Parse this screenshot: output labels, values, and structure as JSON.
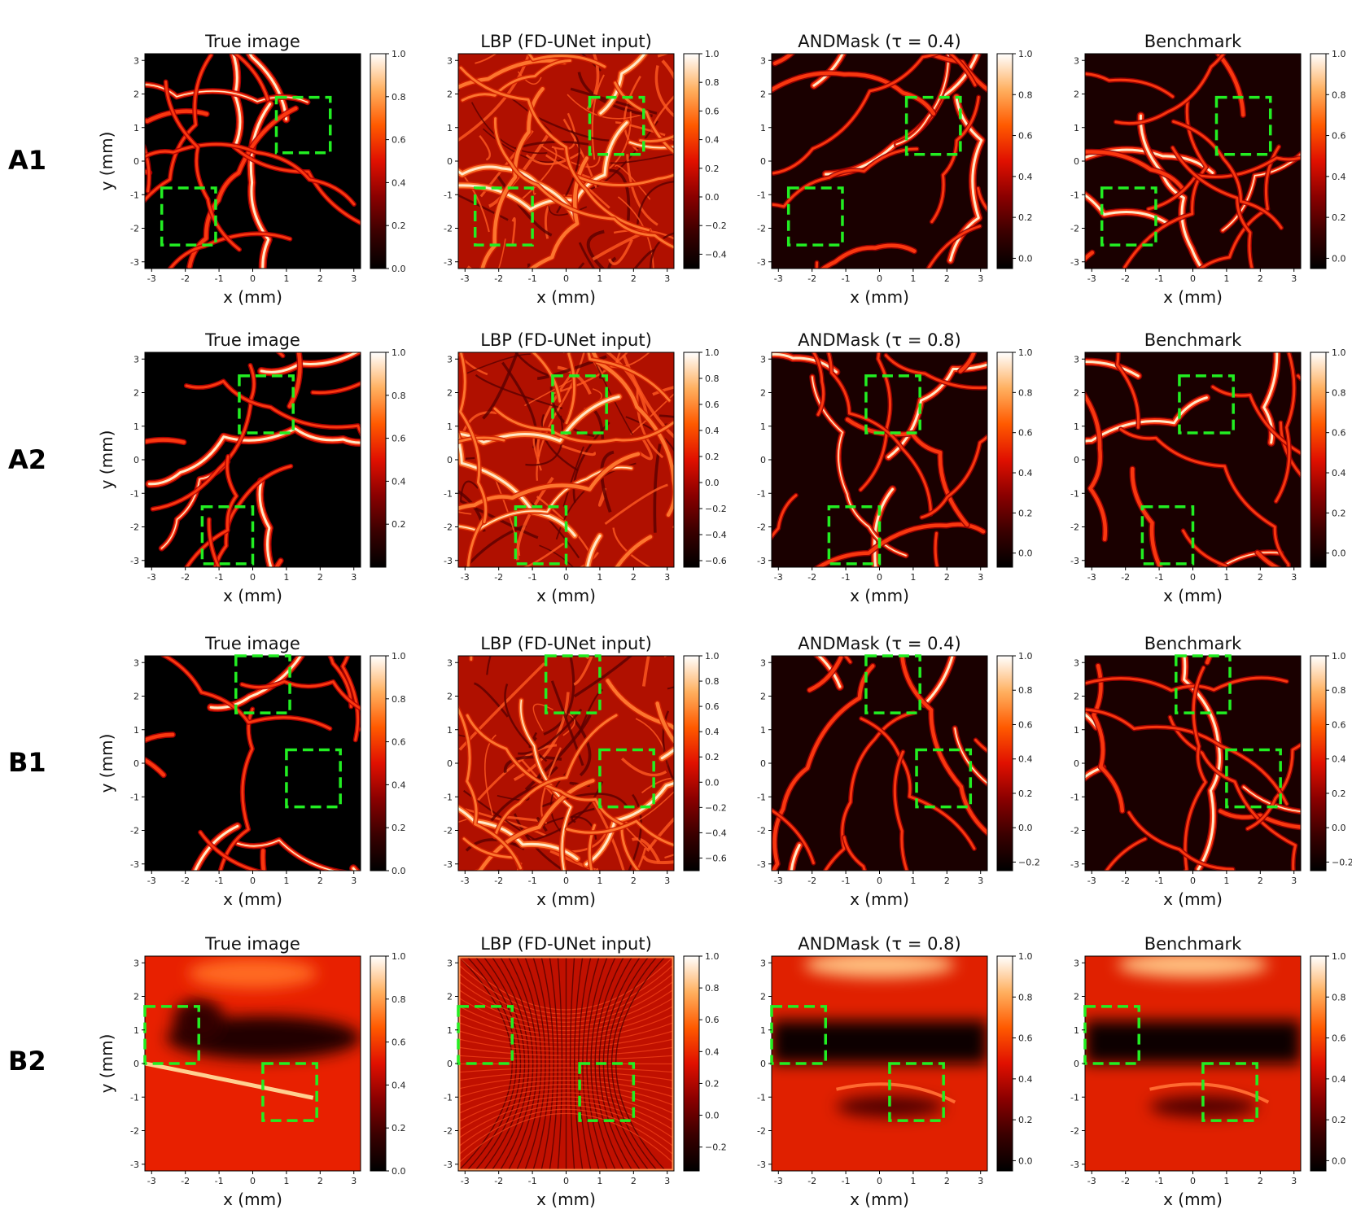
{
  "colormap": {
    "name": "gist_heat",
    "stops": [
      "#000000",
      "#3a0000",
      "#8a0000",
      "#e01000",
      "#ff5a00",
      "#ffb060",
      "#ffffff"
    ]
  },
  "roi_color": "#22ee22",
  "chart_data": [
    {
      "row": "A1",
      "panels": [
        {
          "title": "True image",
          "type": "heatmap",
          "xlabel": "x (mm)",
          "ylabel": "y (mm)",
          "xlim": [
            -3.2,
            3.2
          ],
          "ylim": [
            -3.2,
            3.2
          ],
          "x_ticks": [
            -3,
            -2,
            -1,
            0,
            1,
            2,
            3
          ],
          "y_ticks": [
            3,
            2,
            1,
            0,
            -1,
            -2,
            -3
          ],
          "colorbar": {
            "min": 0.0,
            "max": 1.0,
            "ticks": [
              "1.0",
              "0.8",
              "0.6",
              "0.4",
              "0.2",
              "0.0"
            ]
          },
          "roi": [
            [
              0.7,
              0.25,
              2.3,
              1.9
            ],
            [
              -2.7,
              -2.5,
              -1.1,
              -0.8
            ]
          ],
          "style": "sparse"
        },
        {
          "title": "LBP (FD-UNet input)",
          "type": "heatmap",
          "xlabel": "x (mm)",
          "ylabel": "",
          "xlim": [
            -3.2,
            3.2
          ],
          "ylim": [
            -3.2,
            3.2
          ],
          "x_ticks": [
            -3,
            -2,
            -1,
            0,
            1,
            2,
            3
          ],
          "y_ticks": [
            3,
            2,
            1,
            0,
            -1,
            -2,
            -3
          ],
          "colorbar": {
            "min": -0.5,
            "max": 1.0,
            "ticks": [
              "1.0",
              "0.8",
              "0.6",
              "0.4",
              "0.2",
              "0.0",
              "−0.2",
              "−0.4"
            ]
          },
          "roi": [
            [
              0.7,
              0.2,
              2.3,
              1.9
            ],
            [
              -2.7,
              -2.5,
              -1.0,
              -0.8
            ]
          ],
          "style": "noisy"
        },
        {
          "title": "ANDMask (τ = 0.4)",
          "type": "heatmap",
          "xlabel": "x (mm)",
          "ylabel": "",
          "xlim": [
            -3.2,
            3.2
          ],
          "ylim": [
            -3.2,
            3.2
          ],
          "x_ticks": [
            -3,
            -2,
            -1,
            0,
            1,
            2,
            3
          ],
          "y_ticks": [
            3,
            2,
            1,
            0,
            -1,
            -2,
            -3
          ],
          "colorbar": {
            "min": -0.05,
            "max": 1.0,
            "ticks": [
              "1.0",
              "0.8",
              "0.6",
              "0.4",
              "0.2",
              "0.0"
            ]
          },
          "roi": [
            [
              0.8,
              0.2,
              2.4,
              1.9
            ],
            [
              -2.7,
              -2.5,
              -1.1,
              -0.8
            ]
          ],
          "style": "recon"
        },
        {
          "title": "Benchmark",
          "type": "heatmap",
          "xlabel": "x (mm)",
          "ylabel": "",
          "xlim": [
            -3.2,
            3.2
          ],
          "ylim": [
            -3.2,
            3.2
          ],
          "x_ticks": [
            -3,
            -2,
            -1,
            0,
            1,
            2,
            3
          ],
          "y_ticks": [
            3,
            2,
            1,
            0,
            -1,
            -2,
            -3
          ],
          "colorbar": {
            "min": -0.05,
            "max": 1.0,
            "ticks": [
              "1.0",
              "0.8",
              "0.6",
              "0.4",
              "0.2",
              "0.0"
            ]
          },
          "roi": [
            [
              0.7,
              0.2,
              2.3,
              1.9
            ],
            [
              -2.7,
              -2.5,
              -1.1,
              -0.8
            ]
          ],
          "style": "recon"
        }
      ]
    },
    {
      "row": "A2",
      "panels": [
        {
          "title": "True image",
          "type": "heatmap",
          "xlabel": "x (mm)",
          "ylabel": "y (mm)",
          "xlim": [
            -3.2,
            3.2
          ],
          "ylim": [
            -3.2,
            3.2
          ],
          "x_ticks": [
            -3,
            -2,
            -1,
            0,
            1,
            2,
            3
          ],
          "y_ticks": [
            3,
            2,
            1,
            0,
            -1,
            -2,
            -3
          ],
          "colorbar": {
            "min": 0.0,
            "max": 1.0,
            "ticks": [
              "1.0",
              "0.8",
              "0.6",
              "0.4",
              "0.2"
            ]
          },
          "roi": [
            [
              -0.4,
              0.8,
              1.2,
              2.5
            ],
            [
              -1.5,
              -3.1,
              0.0,
              -1.4
            ]
          ],
          "style": "sparse"
        },
        {
          "title": "LBP (FD-UNet input)",
          "type": "heatmap",
          "xlabel": "x (mm)",
          "ylabel": "",
          "xlim": [
            -3.2,
            3.2
          ],
          "ylim": [
            -3.2,
            3.2
          ],
          "x_ticks": [
            -3,
            -2,
            -1,
            0,
            1,
            2,
            3
          ],
          "y_ticks": [
            3,
            2,
            1,
            0,
            -1,
            -2,
            -3
          ],
          "colorbar": {
            "min": -0.65,
            "max": 1.0,
            "ticks": [
              "1.0",
              "0.8",
              "0.6",
              "0.4",
              "0.2",
              "0.0",
              "−0.2",
              "−0.4",
              "−0.6"
            ]
          },
          "roi": [
            [
              -0.4,
              0.8,
              1.2,
              2.5
            ],
            [
              -1.5,
              -3.1,
              0.0,
              -1.4
            ]
          ],
          "style": "noisy"
        },
        {
          "title": "ANDMask (τ = 0.8)",
          "type": "heatmap",
          "xlabel": "x (mm)",
          "ylabel": "",
          "xlim": [
            -3.2,
            3.2
          ],
          "ylim": [
            -3.2,
            3.2
          ],
          "x_ticks": [
            -3,
            -2,
            -1,
            0,
            1,
            2,
            3
          ],
          "y_ticks": [
            3,
            2,
            1,
            0,
            -1,
            -2,
            -3
          ],
          "colorbar": {
            "min": -0.07,
            "max": 1.0,
            "ticks": [
              "1.0",
              "0.8",
              "0.6",
              "0.4",
              "0.2",
              "0.0"
            ]
          },
          "roi": [
            [
              -0.4,
              0.8,
              1.2,
              2.5
            ],
            [
              -1.5,
              -3.1,
              0.0,
              -1.4
            ]
          ],
          "style": "recon"
        },
        {
          "title": "Benchmark",
          "type": "heatmap",
          "xlabel": "x (mm)",
          "ylabel": "",
          "xlim": [
            -3.2,
            3.2
          ],
          "ylim": [
            -3.2,
            3.2
          ],
          "x_ticks": [
            -3,
            -2,
            -1,
            0,
            1,
            2,
            3
          ],
          "y_ticks": [
            3,
            2,
            1,
            0,
            -1,
            -2,
            -3
          ],
          "colorbar": {
            "min": -0.07,
            "max": 1.0,
            "ticks": [
              "1.0",
              "0.8",
              "0.6",
              "0.4",
              "0.2",
              "0.0"
            ]
          },
          "roi": [
            [
              -0.4,
              0.8,
              1.2,
              2.5
            ],
            [
              -1.5,
              -3.1,
              0.0,
              -1.4
            ]
          ],
          "style": "recon"
        }
      ]
    },
    {
      "row": "B1",
      "panels": [
        {
          "title": "True image",
          "type": "heatmap",
          "xlabel": "x (mm)",
          "ylabel": "y (mm)",
          "xlim": [
            -3.2,
            3.2
          ],
          "ylim": [
            -3.2,
            3.2
          ],
          "x_ticks": [
            -3,
            -2,
            -1,
            0,
            1,
            2,
            3
          ],
          "y_ticks": [
            3,
            2,
            1,
            0,
            -1,
            -2,
            -3
          ],
          "colorbar": {
            "min": 0.0,
            "max": 1.0,
            "ticks": [
              "1.0",
              "0.8",
              "0.6",
              "0.4",
              "0.2",
              "0.0"
            ]
          },
          "roi": [
            [
              -0.5,
              1.5,
              1.1,
              3.2
            ],
            [
              1.0,
              -1.3,
              2.6,
              0.4
            ]
          ],
          "style": "sparse"
        },
        {
          "title": "LBP (FD-UNet input)",
          "type": "heatmap",
          "xlabel": "x (mm)",
          "ylabel": "",
          "xlim": [
            -3.2,
            3.2
          ],
          "ylim": [
            -3.2,
            3.2
          ],
          "x_ticks": [
            -3,
            -2,
            -1,
            0,
            1,
            2,
            3
          ],
          "y_ticks": [
            3,
            2,
            1,
            0,
            -1,
            -2,
            -3
          ],
          "colorbar": {
            "min": -0.7,
            "max": 1.0,
            "ticks": [
              "1.0",
              "0.8",
              "0.6",
              "0.4",
              "0.2",
              "0.0",
              "−0.2",
              "−0.4",
              "−0.6"
            ]
          },
          "roi": [
            [
              -0.6,
              1.5,
              1.0,
              3.2
            ],
            [
              1.0,
              -1.3,
              2.6,
              0.4
            ]
          ],
          "style": "noisy"
        },
        {
          "title": "ANDMask (τ = 0.4)",
          "type": "heatmap",
          "xlabel": "x (mm)",
          "ylabel": "",
          "xlim": [
            -3.2,
            3.2
          ],
          "ylim": [
            -3.2,
            3.2
          ],
          "x_ticks": [
            -3,
            -2,
            -1,
            0,
            1,
            2,
            3
          ],
          "y_ticks": [
            3,
            2,
            1,
            0,
            -1,
            -2,
            -3
          ],
          "colorbar": {
            "min": -0.25,
            "max": 1.0,
            "ticks": [
              "1.0",
              "0.8",
              "0.6",
              "0.4",
              "0.2",
              "0.0",
              "−0.2"
            ]
          },
          "roi": [
            [
              -0.4,
              1.5,
              1.2,
              3.2
            ],
            [
              1.1,
              -1.3,
              2.7,
              0.4
            ]
          ],
          "style": "recon"
        },
        {
          "title": "Benchmark",
          "type": "heatmap",
          "xlabel": "x (mm)",
          "ylabel": "",
          "xlim": [
            -3.2,
            3.2
          ],
          "ylim": [
            -3.2,
            3.2
          ],
          "x_ticks": [
            -3,
            -2,
            -1,
            0,
            1,
            2,
            3
          ],
          "y_ticks": [
            3,
            2,
            1,
            0,
            -1,
            -2,
            -3
          ],
          "colorbar": {
            "min": -0.25,
            "max": 1.0,
            "ticks": [
              "1.0",
              "0.8",
              "0.6",
              "0.4",
              "0.2",
              "0.0",
              "−0.2"
            ]
          },
          "roi": [
            [
              -0.5,
              1.5,
              1.1,
              3.2
            ],
            [
              1.0,
              -1.3,
              2.6,
              0.4
            ]
          ],
          "style": "recon"
        }
      ]
    },
    {
      "row": "B2",
      "panels": [
        {
          "title": "True image",
          "type": "heatmap",
          "xlabel": "x (mm)",
          "ylabel": "y (mm)",
          "xlim": [
            -3.2,
            3.2
          ],
          "ylim": [
            -3.2,
            3.2
          ],
          "x_ticks": [
            -3,
            -2,
            -1,
            0,
            1,
            2,
            3
          ],
          "y_ticks": [
            3,
            2,
            1,
            0,
            -1,
            -2,
            -3
          ],
          "colorbar": {
            "min": 0.0,
            "max": 1.0,
            "ticks": [
              "1.0",
              "0.8",
              "0.6",
              "0.4",
              "0.2",
              "0.0"
            ]
          },
          "roi": [
            [
              -3.2,
              0.0,
              -1.6,
              1.7
            ],
            [
              0.3,
              -1.7,
              1.9,
              0.0
            ]
          ],
          "style": "tissue"
        },
        {
          "title": "LBP (FD-UNet input)",
          "type": "heatmap",
          "xlabel": "x (mm)",
          "ylabel": "",
          "xlim": [
            -3.2,
            3.2
          ],
          "ylim": [
            -3.2,
            3.2
          ],
          "x_ticks": [
            -3,
            -2,
            -1,
            0,
            1,
            2,
            3
          ],
          "y_ticks": [
            3,
            2,
            1,
            0,
            -1,
            -2,
            -3
          ],
          "colorbar": {
            "min": -0.35,
            "max": 1.0,
            "ticks": [
              "1.0",
              "0.8",
              "0.6",
              "0.4",
              "0.2",
              "0.0",
              "−0.2"
            ]
          },
          "roi": [
            [
              -3.2,
              0.0,
              -1.6,
              1.7
            ],
            [
              0.4,
              -1.7,
              2.0,
              0.0
            ]
          ],
          "style": "lbp_tissue"
        },
        {
          "title": "ANDMask (τ = 0.8)",
          "type": "heatmap",
          "xlabel": "x (mm)",
          "ylabel": "",
          "xlim": [
            -3.2,
            3.2
          ],
          "ylim": [
            -3.2,
            3.2
          ],
          "x_ticks": [
            -3,
            -2,
            -1,
            0,
            1,
            2,
            3
          ],
          "y_ticks": [
            3,
            2,
            1,
            0,
            -1,
            -2,
            -3
          ],
          "colorbar": {
            "min": -0.05,
            "max": 1.0,
            "ticks": [
              "1.0",
              "0.8",
              "0.6",
              "0.4",
              "0.2",
              "0.0"
            ]
          },
          "roi": [
            [
              -3.2,
              0.0,
              -1.6,
              1.7
            ],
            [
              0.3,
              -1.7,
              1.9,
              0.0
            ]
          ],
          "style": "tissue_recon"
        },
        {
          "title": "Benchmark",
          "type": "heatmap",
          "xlabel": "x (mm)",
          "ylabel": "",
          "xlim": [
            -3.2,
            3.2
          ],
          "ylim": [
            -3.2,
            3.2
          ],
          "x_ticks": [
            -3,
            -2,
            -1,
            0,
            1,
            2,
            3
          ],
          "y_ticks": [
            3,
            2,
            1,
            0,
            -1,
            -2,
            -3
          ],
          "colorbar": {
            "min": -0.05,
            "max": 1.0,
            "ticks": [
              "1.0",
              "0.8",
              "0.6",
              "0.4",
              "0.2",
              "0.0"
            ]
          },
          "roi": [
            [
              -3.2,
              0.0,
              -1.6,
              1.7
            ],
            [
              0.3,
              -1.7,
              1.9,
              0.0
            ]
          ],
          "style": "tissue_recon"
        }
      ]
    }
  ]
}
